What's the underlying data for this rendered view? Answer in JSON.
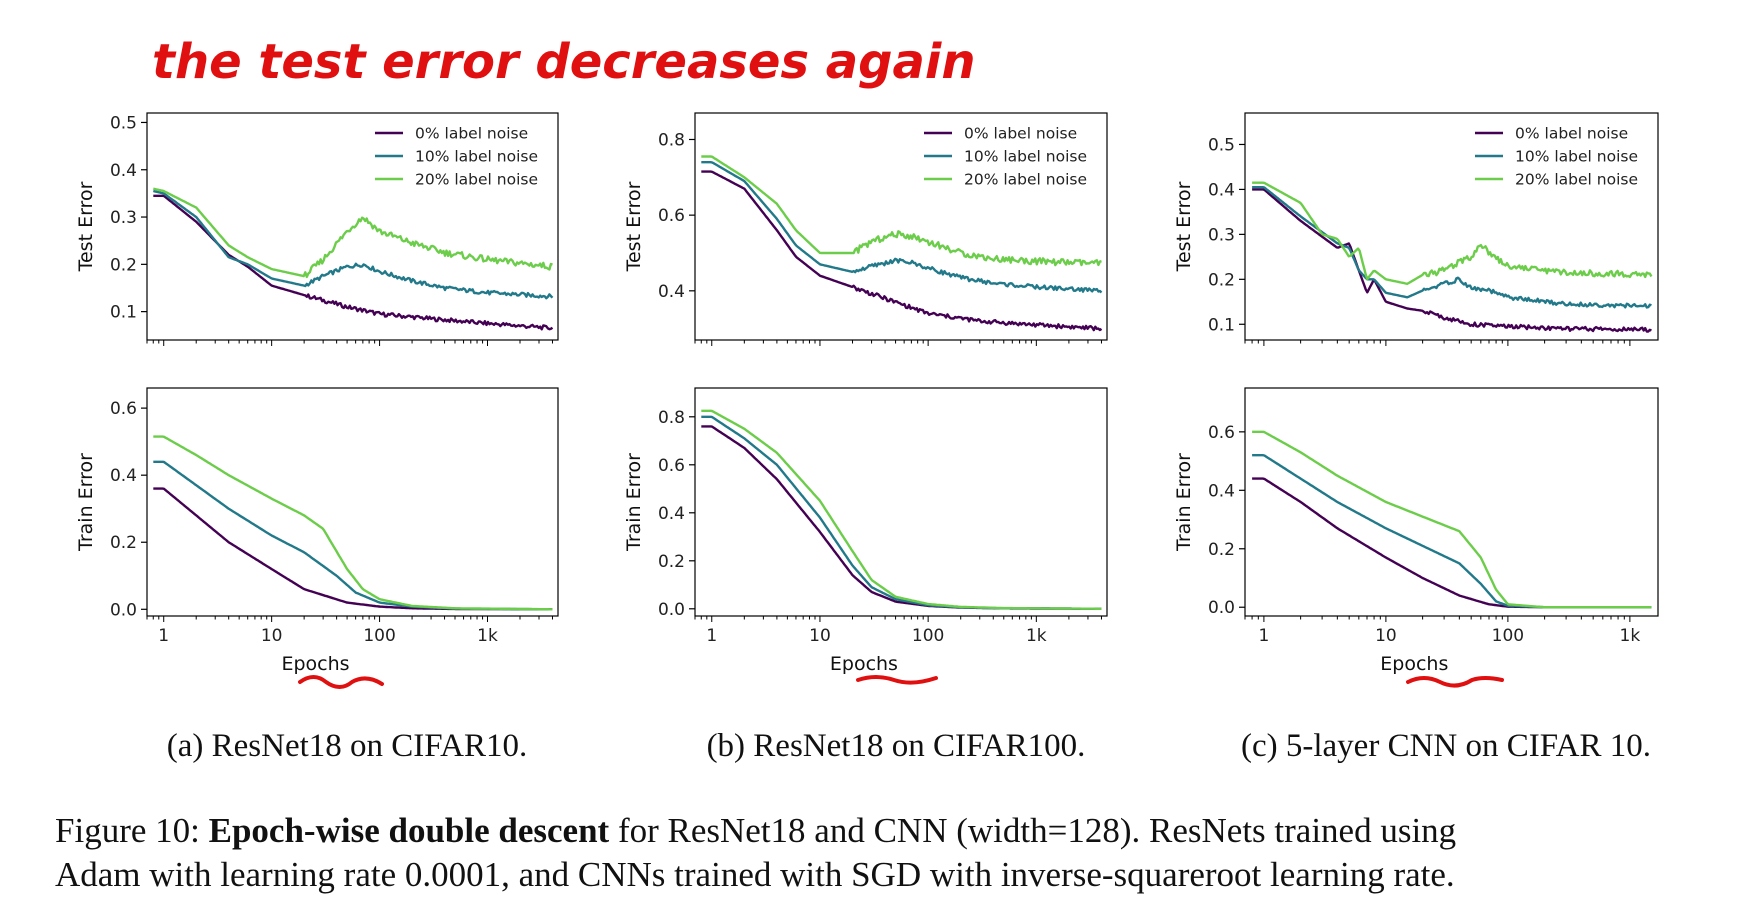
{
  "annotation": {
    "text": "the test error  decreases again",
    "color": "#e01010"
  },
  "colors": {
    "noise0": "#440154",
    "noise10": "#21798a",
    "noise20": "#6ccd4a"
  },
  "shared": {
    "xlabel": "Epochs",
    "xticks": [
      {
        "value": 1,
        "label": "1"
      },
      {
        "value": 10,
        "label": "10"
      },
      {
        "value": 100,
        "label": "100"
      },
      {
        "value": 1000,
        "label": "1k"
      }
    ],
    "legend": [
      "0% label noise",
      "10% label noise",
      "20% label noise"
    ]
  },
  "subcaptions": {
    "a": "(a) ResNet18 on CIFAR10.",
    "b": "(b) ResNet18 on CIFAR100.",
    "c": "(c) 5-layer CNN on CIFAR 10."
  },
  "caption": {
    "prefix": "Figure 10: ",
    "bold": "Epoch-wise double descent",
    "line1_rest": " for ResNet18 and CNN (width=128). ResNets trained using",
    "line2": "Adam with learning rate 0.0001, and CNNs trained with SGD with inverse-squareroot learning rate."
  },
  "chart_data": [
    {
      "id": "a-test",
      "type": "line",
      "title": "",
      "xlabel": "",
      "ylabel": "Test Error",
      "xscale": "log",
      "xlim": [
        0.7,
        4500
      ],
      "ylim": [
        0.04,
        0.52
      ],
      "yticks": [
        0.1,
        0.2,
        0.3,
        0.4,
        0.5
      ],
      "ytick_labels": [
        "0.1",
        "0.2",
        "0.3",
        "0.4",
        "0.5"
      ],
      "legend": "upper-right",
      "series": [
        {
          "name": "0% label noise",
          "x": [
            0.8,
            1,
            2,
            4,
            6,
            10,
            20,
            50,
            100,
            300,
            1000,
            4000
          ],
          "y": [
            0.345,
            0.345,
            0.29,
            0.22,
            0.195,
            0.155,
            0.135,
            0.11,
            0.095,
            0.085,
            0.075,
            0.065
          ]
        },
        {
          "name": "10% label noise",
          "x": [
            0.8,
            1,
            2,
            4,
            6,
            10,
            20,
            30,
            50,
            70,
            100,
            200,
            400,
            1000,
            4000
          ],
          "y": [
            0.355,
            0.35,
            0.3,
            0.215,
            0.2,
            0.17,
            0.155,
            0.175,
            0.195,
            0.2,
            0.185,
            0.165,
            0.15,
            0.14,
            0.132
          ]
        },
        {
          "name": "20% label noise",
          "x": [
            0.8,
            1,
            2,
            4,
            6,
            10,
            20,
            30,
            50,
            70,
            100,
            200,
            400,
            1000,
            4000
          ],
          "y": [
            0.36,
            0.355,
            0.32,
            0.24,
            0.215,
            0.19,
            0.175,
            0.21,
            0.27,
            0.3,
            0.27,
            0.245,
            0.225,
            0.21,
            0.195
          ]
        }
      ]
    },
    {
      "id": "b-test",
      "type": "line",
      "title": "",
      "xlabel": "",
      "ylabel": "Test Error",
      "xscale": "log",
      "xlim": [
        0.7,
        4500
      ],
      "ylim": [
        0.27,
        0.87
      ],
      "yticks": [
        0.4,
        0.6,
        0.8
      ],
      "ytick_labels": [
        "0.4",
        "0.6",
        "0.8"
      ],
      "legend": "upper-right",
      "series": [
        {
          "name": "0% label noise",
          "x": [
            0.8,
            1,
            2,
            4,
            6,
            10,
            20,
            50,
            100,
            300,
            1000,
            4000
          ],
          "y": [
            0.715,
            0.715,
            0.67,
            0.56,
            0.49,
            0.44,
            0.41,
            0.37,
            0.34,
            0.32,
            0.31,
            0.3
          ]
        },
        {
          "name": "10% label noise",
          "x": [
            0.8,
            1,
            2,
            4,
            6,
            10,
            20,
            30,
            50,
            70,
            100,
            200,
            400,
            1000,
            4000
          ],
          "y": [
            0.74,
            0.74,
            0.69,
            0.59,
            0.52,
            0.47,
            0.45,
            0.465,
            0.48,
            0.475,
            0.46,
            0.435,
            0.42,
            0.41,
            0.4
          ]
        },
        {
          "name": "20% label noise",
          "x": [
            0.8,
            1,
            2,
            4,
            6,
            10,
            20,
            30,
            50,
            70,
            100,
            200,
            400,
            1000,
            4000
          ],
          "y": [
            0.755,
            0.755,
            0.7,
            0.63,
            0.56,
            0.5,
            0.5,
            0.53,
            0.55,
            0.545,
            0.53,
            0.5,
            0.485,
            0.478,
            0.472
          ]
        }
      ]
    },
    {
      "id": "c-test",
      "type": "line",
      "title": "",
      "xlabel": "",
      "ylabel": "Test Error",
      "xscale": "log",
      "xlim": [
        0.7,
        1700
      ],
      "ylim": [
        0.065,
        0.57
      ],
      "yticks": [
        0.1,
        0.2,
        0.3,
        0.4,
        0.5
      ],
      "ytick_labels": [
        "0.1",
        "0.2",
        "0.3",
        "0.4",
        "0.5"
      ],
      "legend": "upper-right",
      "series": [
        {
          "name": "0% label noise",
          "x": [
            0.8,
            1,
            2,
            4,
            5,
            6,
            7,
            8,
            10,
            15,
            20,
            30,
            50,
            100,
            300,
            1500
          ],
          "y": [
            0.4,
            0.4,
            0.33,
            0.27,
            0.28,
            0.22,
            0.17,
            0.2,
            0.15,
            0.135,
            0.13,
            0.115,
            0.1,
            0.095,
            0.09,
            0.088
          ]
        },
        {
          "name": "10% label noise",
          "x": [
            0.8,
            1,
            2,
            4,
            5,
            6,
            7,
            8,
            10,
            15,
            20,
            30,
            40,
            50,
            70,
            100,
            300,
            1500
          ],
          "y": [
            0.405,
            0.405,
            0.34,
            0.28,
            0.27,
            0.22,
            0.2,
            0.2,
            0.17,
            0.16,
            0.175,
            0.19,
            0.2,
            0.18,
            0.175,
            0.16,
            0.145,
            0.14
          ]
        },
        {
          "name": "20% label noise",
          "x": [
            0.8,
            1,
            2,
            3,
            4,
            5,
            6,
            7,
            8,
            10,
            15,
            20,
            30,
            40,
            50,
            60,
            70,
            100,
            300,
            1500
          ],
          "y": [
            0.415,
            0.415,
            0.37,
            0.3,
            0.29,
            0.25,
            0.27,
            0.2,
            0.22,
            0.2,
            0.19,
            0.21,
            0.22,
            0.24,
            0.25,
            0.28,
            0.26,
            0.23,
            0.215,
            0.21
          ]
        }
      ]
    },
    {
      "id": "a-train",
      "type": "line",
      "title": "",
      "xlabel": "Epochs",
      "ylabel": "Train Error",
      "xscale": "log",
      "xlim": [
        0.7,
        4500
      ],
      "ylim": [
        -0.02,
        0.66
      ],
      "yticks": [
        0.0,
        0.2,
        0.4,
        0.6
      ],
      "ytick_labels": [
        "0.0",
        "0.2",
        "0.4",
        "0.6"
      ],
      "series": [
        {
          "name": "0% label noise",
          "x": [
            0.8,
            1,
            2,
            4,
            10,
            20,
            50,
            100,
            200,
            500,
            4000
          ],
          "y": [
            0.36,
            0.36,
            0.28,
            0.2,
            0.12,
            0.06,
            0.02,
            0.008,
            0.003,
            0.001,
            0.0
          ]
        },
        {
          "name": "10% label noise",
          "x": [
            0.8,
            1,
            2,
            4,
            10,
            20,
            40,
            60,
            100,
            200,
            500,
            4000
          ],
          "y": [
            0.44,
            0.44,
            0.37,
            0.3,
            0.22,
            0.17,
            0.1,
            0.05,
            0.02,
            0.008,
            0.002,
            0.0
          ]
        },
        {
          "name": "20% label noise",
          "x": [
            0.8,
            1,
            2,
            4,
            10,
            20,
            30,
            50,
            70,
            100,
            200,
            500,
            4000
          ],
          "y": [
            0.515,
            0.515,
            0.46,
            0.4,
            0.33,
            0.28,
            0.24,
            0.12,
            0.06,
            0.03,
            0.01,
            0.003,
            0.0
          ]
        }
      ]
    },
    {
      "id": "b-train",
      "type": "line",
      "title": "",
      "xlabel": "Epochs",
      "ylabel": "Train Error",
      "xscale": "log",
      "xlim": [
        0.7,
        4500
      ],
      "ylim": [
        -0.03,
        0.92
      ],
      "yticks": [
        0.0,
        0.2,
        0.4,
        0.6,
        0.8
      ],
      "ytick_labels": [
        "0.0",
        "0.2",
        "0.4",
        "0.6",
        "0.8"
      ],
      "series": [
        {
          "name": "0% label noise",
          "x": [
            0.8,
            1,
            2,
            4,
            10,
            20,
            30,
            50,
            100,
            200,
            500,
            4000
          ],
          "y": [
            0.76,
            0.76,
            0.67,
            0.54,
            0.32,
            0.14,
            0.07,
            0.03,
            0.012,
            0.005,
            0.002,
            0.0
          ]
        },
        {
          "name": "10% label noise",
          "x": [
            0.8,
            1,
            2,
            4,
            10,
            20,
            30,
            50,
            100,
            200,
            500,
            4000
          ],
          "y": [
            0.8,
            0.8,
            0.71,
            0.6,
            0.38,
            0.18,
            0.09,
            0.04,
            0.015,
            0.006,
            0.002,
            0.0
          ]
        },
        {
          "name": "20% label noise",
          "x": [
            0.8,
            1,
            2,
            4,
            10,
            20,
            30,
            50,
            100,
            200,
            500,
            4000
          ],
          "y": [
            0.825,
            0.825,
            0.75,
            0.65,
            0.45,
            0.24,
            0.12,
            0.05,
            0.02,
            0.008,
            0.003,
            0.0
          ]
        }
      ]
    },
    {
      "id": "c-train",
      "type": "line",
      "title": "",
      "xlabel": "Epochs",
      "ylabel": "Train Error",
      "xscale": "log",
      "xlim": [
        0.7,
        1700
      ],
      "ylim": [
        -0.03,
        0.75
      ],
      "yticks": [
        0.0,
        0.2,
        0.4,
        0.6
      ],
      "ytick_labels": [
        "0.0",
        "0.2",
        "0.4",
        "0.6"
      ],
      "series": [
        {
          "name": "0% label noise",
          "x": [
            0.8,
            1,
            2,
            4,
            10,
            20,
            40,
            70,
            100,
            200,
            1500
          ],
          "y": [
            0.44,
            0.44,
            0.36,
            0.27,
            0.17,
            0.1,
            0.04,
            0.01,
            0.002,
            0.0,
            0.0
          ]
        },
        {
          "name": "10% label noise",
          "x": [
            0.8,
            1,
            2,
            4,
            10,
            20,
            40,
            60,
            80,
            100,
            200,
            1500
          ],
          "y": [
            0.52,
            0.52,
            0.44,
            0.36,
            0.27,
            0.21,
            0.15,
            0.08,
            0.02,
            0.005,
            0.0,
            0.0
          ]
        },
        {
          "name": "20% label noise",
          "x": [
            0.8,
            1,
            2,
            4,
            10,
            20,
            40,
            60,
            80,
            100,
            200,
            1500
          ],
          "y": [
            0.6,
            0.6,
            0.53,
            0.45,
            0.36,
            0.31,
            0.26,
            0.17,
            0.06,
            0.01,
            0.0,
            0.0
          ]
        }
      ]
    }
  ]
}
